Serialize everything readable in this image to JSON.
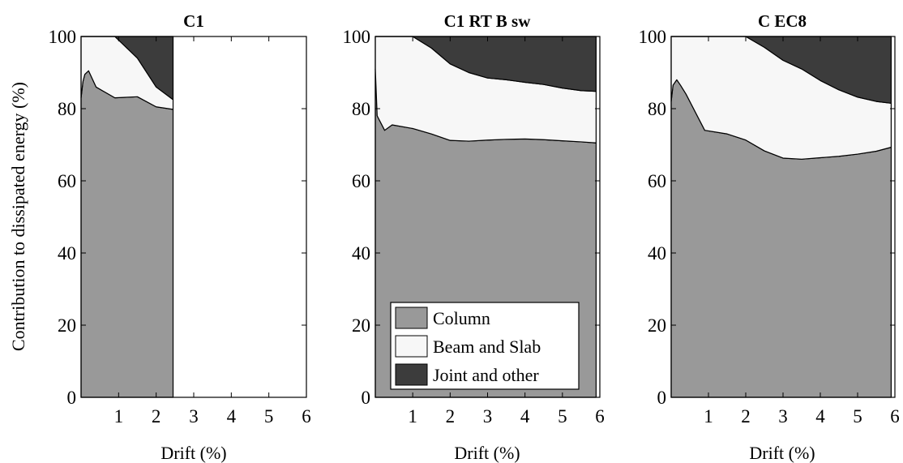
{
  "colors": {
    "column": "#999999",
    "beam_slab": "#f7f7f7",
    "joint_other": "#3c3c3c",
    "axes": "#000000"
  },
  "chart_data": [
    {
      "type": "area",
      "title": "C1",
      "xlabel": "Drift (%)",
      "ylabel": "Contribution to dissipated energy (%)",
      "xlim": [
        0,
        6
      ],
      "ylim": [
        0,
        100
      ],
      "xticks": [
        "1",
        "2",
        "3",
        "4",
        "5",
        "6"
      ],
      "yticks": [
        "0",
        "20",
        "40",
        "60",
        "80",
        "100"
      ],
      "legend": null,
      "series": [
        {
          "name": "Column",
          "x": [
            0,
            0.05,
            0.1,
            0.2,
            0.4,
            0.9,
            1.5,
            2.0,
            2.45
          ],
          "y": [
            83,
            87.5,
            89.5,
            90.5,
            86,
            83,
            83.3,
            80.5,
            79.8
          ]
        },
        {
          "name": "Beam and Slab",
          "x": [
            0,
            0.05,
            0.1,
            0.2,
            0.4,
            0.9,
            1.5,
            2.0,
            2.45
          ],
          "y": [
            17,
            12.5,
            10.5,
            9.5,
            14,
            17,
            10.7,
            5.5,
            2.7
          ]
        },
        {
          "name": "Joint and other",
          "x": [
            0,
            0.05,
            0.1,
            0.2,
            0.4,
            0.9,
            1.5,
            2.0,
            2.45
          ],
          "y": [
            0,
            0,
            0,
            0,
            0,
            0,
            6,
            14,
            17.5
          ]
        }
      ]
    },
    {
      "type": "area",
      "title": "C1 RT B sw",
      "xlabel": "Drift (%)",
      "ylabel": "",
      "xlim": [
        0,
        6
      ],
      "ylim": [
        0,
        100
      ],
      "xticks": [
        "1",
        "2",
        "3",
        "4",
        "5",
        "6"
      ],
      "yticks": [
        "0",
        "20",
        "40",
        "60",
        "80",
        "100"
      ],
      "legend": {
        "position": "bottom-center",
        "entries": [
          "Column",
          "Beam and Slab",
          "Joint and other"
        ]
      },
      "series": [
        {
          "name": "Column",
          "x": [
            0,
            0.05,
            0.25,
            0.45,
            1.0,
            1.5,
            2.0,
            2.5,
            3.0,
            3.5,
            4.0,
            4.5,
            5.0,
            5.5,
            5.9
          ],
          "y": [
            91,
            78,
            74,
            75.5,
            74.5,
            73,
            71.2,
            71,
            71.3,
            71.5,
            71.6,
            71.4,
            71.1,
            70.8,
            70.5
          ]
        },
        {
          "name": "Beam and Slab",
          "x": [
            0,
            0.05,
            0.25,
            0.45,
            1.0,
            1.5,
            2.0,
            2.5,
            3.0,
            3.5,
            4.0,
            4.5,
            5.0,
            5.5,
            5.9
          ],
          "y": [
            9,
            22,
            26,
            24.5,
            25.5,
            23.8,
            21.2,
            19,
            17.2,
            16.5,
            15.7,
            15.3,
            14.6,
            14.2,
            14.3
          ]
        },
        {
          "name": "Joint and other",
          "x": [
            0,
            0.05,
            0.25,
            0.45,
            1.0,
            1.5,
            2.0,
            2.5,
            3.0,
            3.5,
            4.0,
            4.5,
            5.0,
            5.5,
            5.9
          ],
          "y": [
            0,
            0,
            0,
            0,
            0,
            3.2,
            7.6,
            10,
            11.5,
            12,
            12.7,
            13.3,
            14.3,
            15,
            15.2
          ]
        }
      ]
    },
    {
      "type": "area",
      "title": "C EC8",
      "xlabel": "Drift (%)",
      "ylabel": "",
      "xlim": [
        0,
        6
      ],
      "ylim": [
        0,
        100
      ],
      "xticks": [
        "1",
        "2",
        "3",
        "4",
        "5",
        "6"
      ],
      "yticks": [
        "0",
        "20",
        "40",
        "60",
        "80",
        "100"
      ],
      "legend": null,
      "series": [
        {
          "name": "Column",
          "x": [
            0,
            0.05,
            0.15,
            0.25,
            0.4,
            0.9,
            1.5,
            2.0,
            2.5,
            3.0,
            3.5,
            4.0,
            4.5,
            5.0,
            5.5,
            5.9
          ],
          "y": [
            82,
            86.5,
            88,
            86.5,
            84,
            74,
            73,
            71.3,
            68.3,
            66.3,
            66,
            66.4,
            66.8,
            67.4,
            68.2,
            69.3
          ]
        },
        {
          "name": "Beam and Slab",
          "x": [
            0,
            0.05,
            0.15,
            0.25,
            0.4,
            0.9,
            1.5,
            2.0,
            2.5,
            3.0,
            3.5,
            4.0,
            4.5,
            5.0,
            5.5,
            5.9
          ],
          "y": [
            18,
            13.5,
            12,
            13.5,
            16,
            26,
            27,
            28.7,
            28.7,
            27.1,
            25,
            21.4,
            18.4,
            15.8,
            13.8,
            12.2
          ]
        },
        {
          "name": "Joint and other",
          "x": [
            0,
            0.05,
            0.15,
            0.25,
            0.4,
            0.9,
            1.5,
            2.0,
            2.5,
            3.0,
            3.5,
            4.0,
            4.5,
            5.0,
            5.5,
            5.9
          ],
          "y": [
            0,
            0,
            0,
            0,
            0,
            0,
            0,
            0,
            3,
            6.6,
            9,
            12.2,
            14.8,
            16.8,
            18,
            18.5
          ]
        }
      ]
    }
  ]
}
